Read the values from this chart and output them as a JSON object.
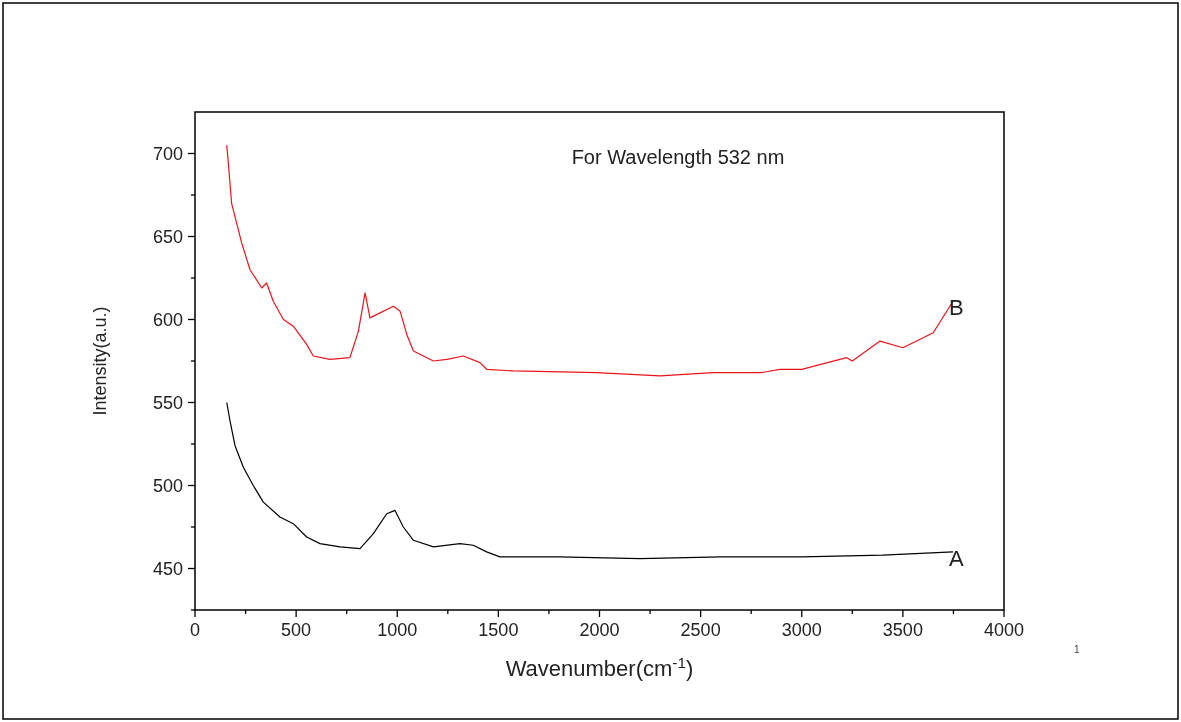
{
  "chart_data": {
    "type": "line",
    "title": "For Wavelength 532 nm",
    "xlabel": "Wavenumber(cm$^{-1}$)",
    "ylabel": "Intensity(a.u.)",
    "xlim": [
      0,
      4000
    ],
    "ylim": [
      425,
      725
    ],
    "xticks": [
      0,
      {
        "value": 250,
        "label": null
      },
      500,
      {
        "value": 750,
        "label": null
      },
      1000,
      {
        "value": 1250,
        "label": null
      },
      1500,
      {
        "value": 1750,
        "label": null
      },
      2000,
      {
        "value": 2250,
        "label": null
      },
      2500,
      {
        "value": 2750,
        "label": null
      },
      3000,
      {
        "value": 3250,
        "label": null
      },
      3500,
      {
        "value": 3750,
        "label": null
      },
      4000
    ],
    "yticks": [
      {
        "value": 425,
        "label": null
      },
      450,
      {
        "value": 475,
        "label": null
      },
      500,
      {
        "value": 525,
        "label": null
      },
      550,
      {
        "value": 575,
        "label": null
      },
      600,
      {
        "value": 625,
        "label": null
      },
      650,
      {
        "value": 675,
        "label": null
      },
      700
    ],
    "grid": false,
    "marker": "none",
    "line_style": "solid",
    "series": [
      {
        "color": "#e8141b",
        "x": [
          157,
          165,
          181,
          206,
          231,
          272,
          330,
          354,
          387,
          437,
          486,
          552,
          585,
          667,
          766,
          808,
          841,
          865,
          915,
          981,
          1014,
          1047,
          1080,
          1179,
          1245,
          1327,
          1409,
          1442,
          1574,
          1986,
          2300,
          2561,
          2800,
          2892,
          3000,
          3222,
          3250,
          3387,
          3500,
          3650,
          3748
        ],
        "values": [
          705,
          694,
          670,
          658,
          646,
          630,
          619,
          622,
          611,
          600,
          596,
          585,
          578,
          576,
          577,
          593,
          616,
          601,
          604,
          608,
          605,
          591,
          581,
          575,
          576,
          578,
          574,
          570,
          569,
          568,
          566,
          568,
          568,
          570,
          570,
          577,
          575,
          587,
          583,
          592,
          611
        ]
      },
      {
        "color": "#000000",
        "x": [
          157,
          173,
          198,
          239,
          288,
          338,
          420,
          486,
          552,
          618,
          717,
          816,
          882,
          948,
          989,
          1030,
          1080,
          1179,
          1310,
          1376,
          1442,
          1508,
          1800,
          2200,
          2600,
          3000,
          3400,
          3748
        ],
        "values": [
          550,
          539,
          524,
          511,
          500,
          490,
          481,
          477,
          469,
          465,
          463,
          462,
          471,
          483,
          485,
          475,
          467,
          463,
          465,
          464,
          460,
          457,
          457,
          456,
          457,
          457,
          458,
          460
        ]
      }
    ],
    "annotations": [
      {
        "text": "B",
        "x": 3748,
        "y": 611
      },
      {
        "text": "A",
        "x": 3748,
        "y": 460
      },
      "1"
    ]
  }
}
